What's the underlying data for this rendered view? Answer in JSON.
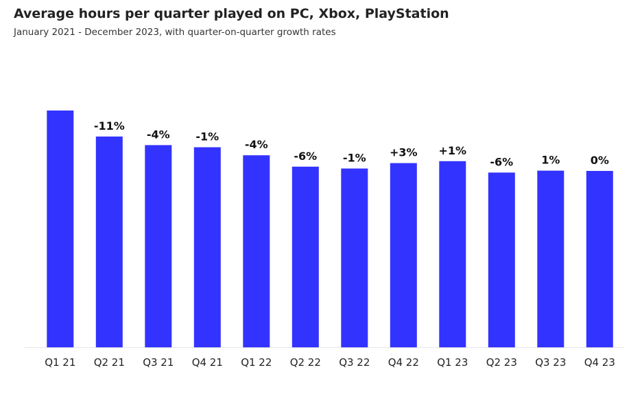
{
  "header": {
    "title": "Average hours per quarter played on PC, Xbox, PlayStation",
    "subtitle": "January 2021 - December 2023, with quarter-on-quarter growth rates"
  },
  "colors": {
    "bar": "#3333ff",
    "axis": "#e6e6e6"
  },
  "chart_data": {
    "type": "bar",
    "title": "Average hours per quarter played on PC, Xbox, PlayStation",
    "subtitle": "January 2021 - December 2023, with quarter-on-quarter growth rates",
    "xlabel": "",
    "ylabel": "",
    "y_axis_shown": false,
    "grid": false,
    "categories": [
      "Q1 21",
      "Q2 21",
      "Q3 21",
      "Q4 21",
      "Q1 22",
      "Q2 22",
      "Q3 22",
      "Q4 22",
      "Q1 23",
      "Q2 23",
      "Q3 23",
      "Q4 23"
    ],
    "values": [
      100,
      89,
      85.4,
      84.5,
      81.1,
      76.3,
      75.5,
      77.8,
      78.6,
      73.8,
      74.6,
      74.5
    ],
    "data_labels": [
      "",
      "-11%",
      "-4%",
      "-1%",
      "-4%",
      "-6%",
      "-1%",
      "+3%",
      "+1%",
      "-6%",
      "1%",
      "0%"
    ],
    "ylim": [
      0,
      100
    ]
  }
}
